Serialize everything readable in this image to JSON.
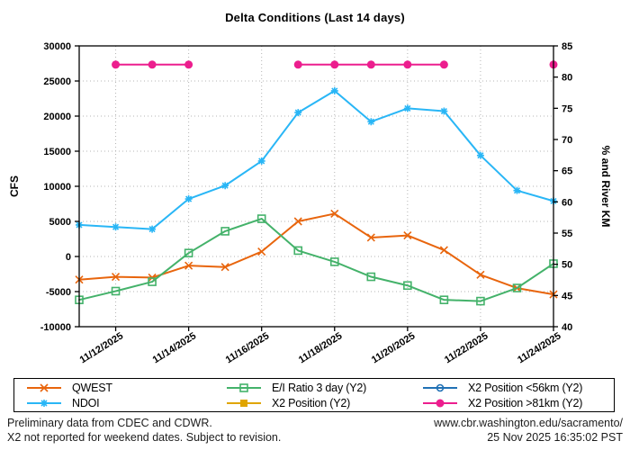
{
  "title": "Delta Conditions (Last 14 days)",
  "axes": {
    "y_left": {
      "label": "CFS",
      "min": -10000,
      "max": 30000,
      "ticks": [
        "30000",
        "25000",
        "20000",
        "15000",
        "10000",
        "5000",
        "0",
        "-5000",
        "-10000"
      ]
    },
    "y_right": {
      "label": "% and River KM",
      "min": 40,
      "max": 85,
      "ticks": [
        "85",
        "80",
        "75",
        "70",
        "65",
        "60",
        "55",
        "50",
        "45",
        "40"
      ]
    },
    "x": {
      "tick_day_indices": [
        1,
        3,
        5,
        7,
        9,
        11,
        13
      ],
      "tick_labels": [
        "11/12/2025",
        "11/14/2025",
        "11/16/2025",
        "11/18/2025",
        "11/20/2025",
        "11/22/2025",
        "11/24/2025"
      ]
    }
  },
  "chart_data": {
    "type": "line",
    "x": [
      "11/11/2025",
      "11/12/2025",
      "11/13/2025",
      "11/14/2025",
      "11/15/2025",
      "11/16/2025",
      "11/17/2025",
      "11/18/2025",
      "11/19/2025",
      "11/20/2025",
      "11/21/2025",
      "11/22/2025",
      "11/23/2025",
      "11/24/2025"
    ],
    "title": "Delta Conditions (Last 14 days)",
    "ylabel_left": "CFS",
    "ylabel_right": "% and River KM",
    "ylim_left": [
      -10000,
      30000
    ],
    "ylim_right": [
      40,
      85
    ],
    "grid": "dotted",
    "legend_position": "bottom-box",
    "series": [
      {
        "name": "QWEST",
        "axis": "left",
        "color": "#e8650d",
        "marker": "cross",
        "values": [
          -3300,
          -2900,
          -3000,
          -1300,
          -1500,
          700,
          5000,
          6100,
          2700,
          3000,
          900,
          -2600,
          -4500,
          -5400
        ]
      },
      {
        "name": "NDOI",
        "axis": "left",
        "color": "#29b6f6",
        "marker": "star",
        "values": [
          4500,
          4200,
          3900,
          8200,
          10100,
          13600,
          20500,
          23600,
          19200,
          21100,
          20700,
          14400,
          9400,
          7900
        ]
      },
      {
        "name": "E/I Ratio 3 day (Y2)",
        "axis": "right",
        "color": "#44b26a",
        "marker": "open-square",
        "values": [
          44.3,
          45.7,
          47.2,
          51.8,
          55.3,
          57.3,
          52.2,
          50.4,
          48.0,
          46.6,
          44.3,
          44.1,
          46.2,
          50.1
        ]
      },
      {
        "name": "X2 Position (Y2)",
        "axis": "right",
        "color": "#e0a500",
        "marker": "filled-square",
        "values": [
          null,
          null,
          null,
          null,
          null,
          null,
          null,
          null,
          null,
          null,
          null,
          null,
          null,
          null
        ]
      },
      {
        "name": "X2 Position <56km (Y2)",
        "axis": "right",
        "color": "#2171b5",
        "marker": "open-circle",
        "values": [
          null,
          null,
          null,
          null,
          null,
          null,
          null,
          null,
          null,
          null,
          null,
          null,
          null,
          null
        ]
      },
      {
        "name": "X2 Position >81km (Y2)",
        "axis": "right",
        "color": "#ec1e8e",
        "marker": "filled-circle",
        "values": [
          null,
          82,
          82,
          82,
          null,
          null,
          82,
          82,
          82,
          82,
          82,
          null,
          null,
          82
        ]
      }
    ]
  },
  "legend": {
    "columns": [
      [
        {
          "label": "QWEST",
          "series": 0
        },
        {
          "label": "NDOI",
          "series": 1
        }
      ],
      [
        {
          "label": "E/I Ratio 3 day (Y2)",
          "series": 2
        },
        {
          "label": "X2 Position (Y2)",
          "series": 3
        }
      ],
      [
        {
          "label": "X2 Position <56km (Y2)",
          "series": 4
        },
        {
          "label": "X2 Position >81km (Y2)",
          "series": 5
        }
      ]
    ]
  },
  "footer": {
    "left_line1": "Preliminary data from CDEC and CDWR.",
    "left_line2": "X2 not reported for weekend dates. Subject to revision.",
    "right_line1": "www.cbr.washington.edu/sacramento/",
    "right_line2": "25 Nov 2025 16:35:02 PST"
  }
}
